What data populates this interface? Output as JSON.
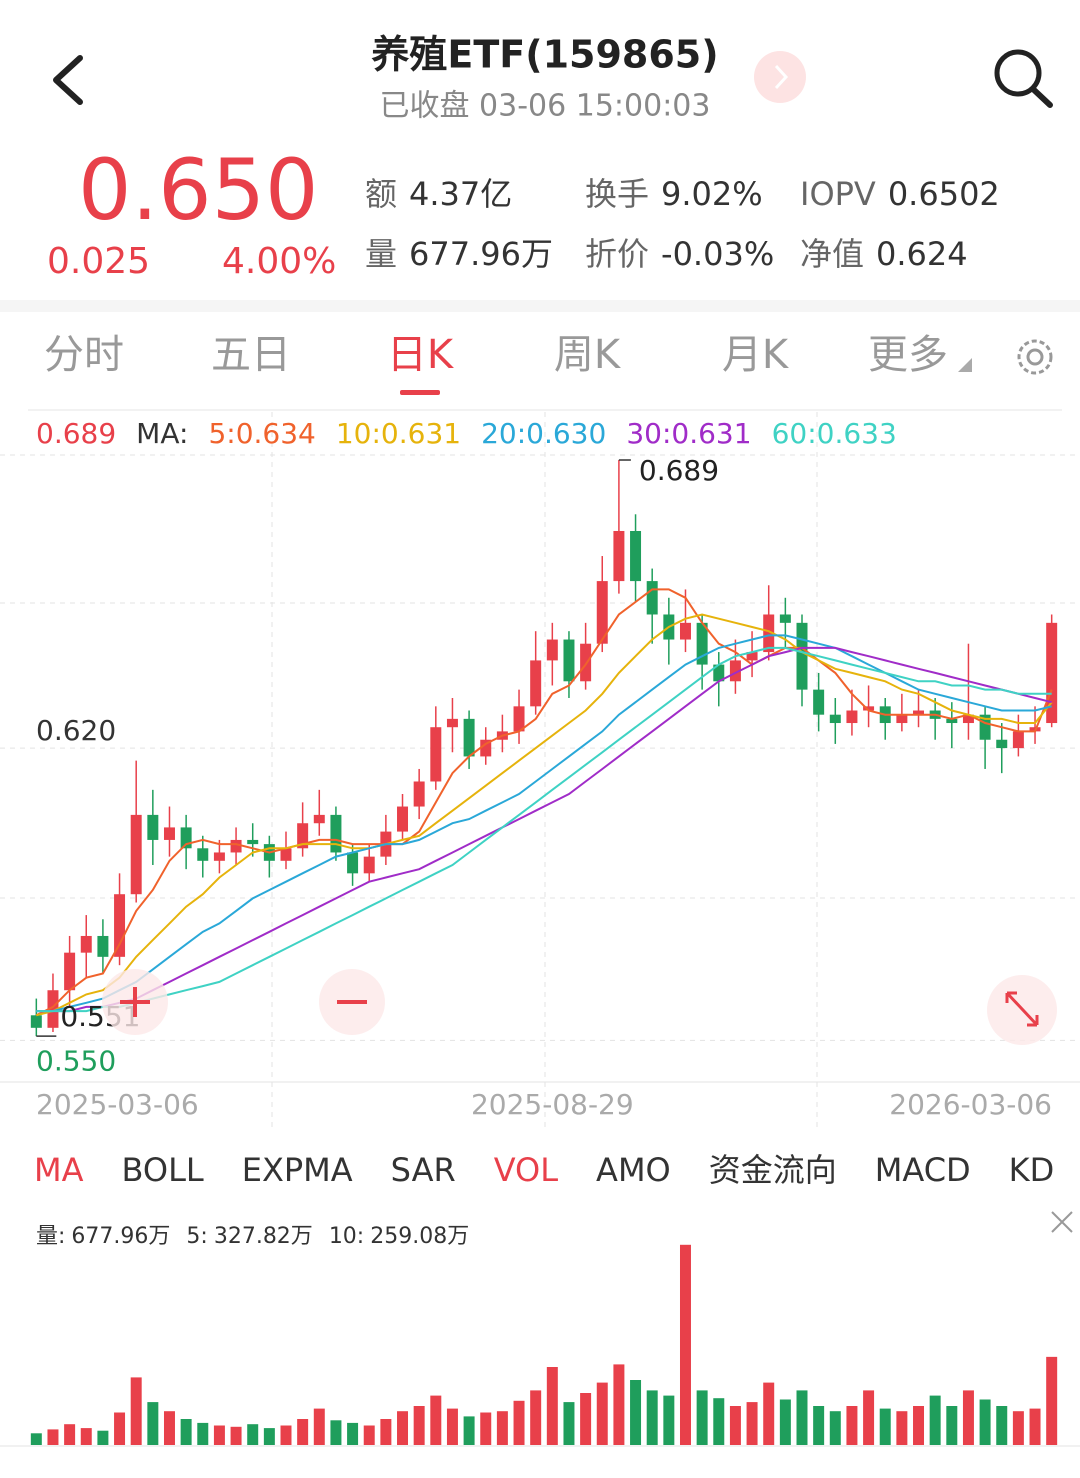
{
  "header": {
    "title": "养殖ETF(159865)",
    "subtitle": "已收盘 03-06 15:00:03"
  },
  "quote": {
    "price": "0.650",
    "change": "0.025",
    "change_pct": "4.00%",
    "stats": [
      [
        "额",
        "4.37亿"
      ],
      [
        "换手",
        "9.02%"
      ],
      [
        "IOPV",
        "0.6502"
      ],
      [
        "量",
        "677.96万"
      ],
      [
        "折价",
        "-0.03%"
      ],
      [
        "净值",
        "0.624"
      ]
    ]
  },
  "tabs": [
    "分时",
    "五日",
    "日K",
    "周K",
    "月K",
    "更多"
  ],
  "active_tab": 2,
  "indicators": [
    "MA",
    "BOLL",
    "EXPMA",
    "SAR",
    "VOL",
    "AMO",
    "资金流向",
    "MACD",
    "KD"
  ],
  "active_indicators": [
    0,
    4
  ],
  "chart_data": [
    {
      "type": "candlestick",
      "cursor_price": "0.689",
      "ma_label": "MA:",
      "up_color": "#e8404a",
      "down_color": "#1f9e5c",
      "ylim": [
        0.5405,
        0.6902
      ],
      "yticks": [
        {
          "value": 0.62,
          "label": "0.620"
        },
        {
          "value": 0.55,
          "label": "0.550"
        }
      ],
      "high_label": 0.689,
      "low_label": 0.551,
      "categories": [
        "2025-03-06",
        null,
        null,
        null,
        null,
        null,
        null,
        null,
        null,
        null,
        null,
        null,
        null,
        null,
        null,
        null,
        null,
        null,
        null,
        null,
        null,
        null,
        null,
        null,
        null,
        null,
        null,
        null,
        null,
        null,
        null,
        "2025-08-29",
        null,
        null,
        null,
        null,
        null,
        null,
        null,
        null,
        null,
        null,
        null,
        null,
        null,
        null,
        null,
        null,
        null,
        null,
        null,
        null,
        null,
        null,
        null,
        null,
        null,
        null,
        null,
        null,
        null,
        "2026-03-06"
      ],
      "candles": [
        [
          0.556,
          0.56,
          0.551,
          0.553
        ],
        [
          0.553,
          0.566,
          0.552,
          0.562
        ],
        [
          0.562,
          0.575,
          0.558,
          0.571
        ],
        [
          0.571,
          0.58,
          0.565,
          0.575
        ],
        [
          0.575,
          0.579,
          0.566,
          0.57
        ],
        [
          0.57,
          0.59,
          0.568,
          0.585
        ],
        [
          0.585,
          0.617,
          0.583,
          0.604
        ],
        [
          0.604,
          0.61,
          0.592,
          0.598
        ],
        [
          0.598,
          0.606,
          0.594,
          0.601
        ],
        [
          0.601,
          0.604,
          0.591,
          0.596
        ],
        [
          0.596,
          0.599,
          0.589,
          0.593
        ],
        [
          0.593,
          0.598,
          0.59,
          0.595
        ],
        [
          0.595,
          0.601,
          0.592,
          0.598
        ],
        [
          0.598,
          0.602,
          0.594,
          0.597
        ],
        [
          0.597,
          0.599,
          0.589,
          0.593
        ],
        [
          0.593,
          0.6,
          0.591,
          0.596
        ],
        [
          0.596,
          0.607,
          0.594,
          0.602
        ],
        [
          0.602,
          0.61,
          0.599,
          0.604
        ],
        [
          0.604,
          0.606,
          0.593,
          0.595
        ],
        [
          0.595,
          0.597,
          0.587,
          0.59
        ],
        [
          0.59,
          0.597,
          0.588,
          0.594
        ],
        [
          0.594,
          0.604,
          0.592,
          0.6
        ],
        [
          0.6,
          0.609,
          0.598,
          0.606
        ],
        [
          0.606,
          0.615,
          0.603,
          0.612
        ],
        [
          0.612,
          0.63,
          0.61,
          0.625
        ],
        [
          0.625,
          0.632,
          0.619,
          0.627
        ],
        [
          0.627,
          0.629,
          0.615,
          0.618
        ],
        [
          0.618,
          0.625,
          0.616,
          0.622
        ],
        [
          0.622,
          0.628,
          0.619,
          0.624
        ],
        [
          0.624,
          0.634,
          0.621,
          0.63
        ],
        [
          0.63,
          0.648,
          0.628,
          0.641
        ],
        [
          0.641,
          0.65,
          0.635,
          0.646
        ],
        [
          0.646,
          0.648,
          0.632,
          0.636
        ],
        [
          0.636,
          0.65,
          0.634,
          0.645
        ],
        [
          0.645,
          0.666,
          0.643,
          0.66
        ],
        [
          0.66,
          0.689,
          0.657,
          0.672
        ],
        [
          0.672,
          0.676,
          0.655,
          0.66
        ],
        [
          0.66,
          0.663,
          0.645,
          0.652
        ],
        [
          0.652,
          0.656,
          0.64,
          0.646
        ],
        [
          0.646,
          0.658,
          0.643,
          0.65
        ],
        [
          0.65,
          0.652,
          0.634,
          0.64
        ],
        [
          0.64,
          0.643,
          0.63,
          0.636
        ],
        [
          0.636,
          0.646,
          0.633,
          0.641
        ],
        [
          0.641,
          0.648,
          0.637,
          0.643
        ],
        [
          0.643,
          0.659,
          0.641,
          0.652
        ],
        [
          0.652,
          0.656,
          0.644,
          0.65
        ],
        [
          0.65,
          0.652,
          0.63,
          0.634
        ],
        [
          0.634,
          0.638,
          0.624,
          0.628
        ],
        [
          0.628,
          0.632,
          0.621,
          0.626
        ],
        [
          0.626,
          0.634,
          0.623,
          0.629
        ],
        [
          0.629,
          0.635,
          0.625,
          0.63
        ],
        [
          0.63,
          0.632,
          0.622,
          0.626
        ],
        [
          0.626,
          0.633,
          0.624,
          0.628
        ],
        [
          0.628,
          0.634,
          0.625,
          0.629
        ],
        [
          0.629,
          0.632,
          0.622,
          0.627
        ],
        [
          0.627,
          0.631,
          0.62,
          0.626
        ],
        [
          0.626,
          0.645,
          0.622,
          0.628
        ],
        [
          0.628,
          0.63,
          0.615,
          0.622
        ],
        [
          0.622,
          0.626,
          0.614,
          0.62
        ],
        [
          0.62,
          0.628,
          0.618,
          0.624
        ],
        [
          0.624,
          0.63,
          0.621,
          0.625
        ],
        [
          0.626,
          0.652,
          0.625,
          0.65
        ]
      ],
      "series": [
        {
          "name": "5:",
          "value_label": "0.634",
          "color": "#f0622c",
          "values": [
            0.556,
            0.558,
            0.562,
            0.565,
            0.566,
            0.573,
            0.581,
            0.586,
            0.593,
            0.597,
            0.598,
            0.597,
            0.597,
            0.596,
            0.595,
            0.596,
            0.597,
            0.598,
            0.598,
            0.597,
            0.597,
            0.597,
            0.597,
            0.6,
            0.607,
            0.614,
            0.618,
            0.621,
            0.623,
            0.624,
            0.627,
            0.633,
            0.635,
            0.64,
            0.646,
            0.652,
            0.655,
            0.658,
            0.658,
            0.656,
            0.65,
            0.645,
            0.643,
            0.64,
            0.642,
            0.644,
            0.644,
            0.641,
            0.638,
            0.633,
            0.629,
            0.628,
            0.628,
            0.628,
            0.628,
            0.627,
            0.628,
            0.626,
            0.625,
            0.624,
            0.624,
            0.634
          ]
        },
        {
          "name": "10:",
          "value_label": "0.631",
          "color": "#e6b30c",
          "values": [
            0.556,
            0.557,
            0.559,
            0.561,
            0.562,
            0.565,
            0.57,
            0.574,
            0.578,
            0.582,
            0.585,
            0.589,
            0.592,
            0.595,
            0.596,
            0.596,
            0.597,
            0.597,
            0.597,
            0.596,
            0.596,
            0.597,
            0.598,
            0.599,
            0.602,
            0.605,
            0.608,
            0.611,
            0.614,
            0.617,
            0.62,
            0.623,
            0.626,
            0.629,
            0.633,
            0.638,
            0.642,
            0.646,
            0.649,
            0.651,
            0.652,
            0.651,
            0.65,
            0.649,
            0.648,
            0.646,
            0.643,
            0.641,
            0.639,
            0.638,
            0.637,
            0.636,
            0.634,
            0.633,
            0.631,
            0.629,
            0.628,
            0.627,
            0.627,
            0.626,
            0.626,
            0.631
          ]
        },
        {
          "name": "20:",
          "value_label": "0.630",
          "color": "#2aa8d8",
          "values": [
            0.557,
            0.557,
            0.558,
            0.559,
            0.56,
            0.562,
            0.564,
            0.567,
            0.57,
            0.573,
            0.576,
            0.578,
            0.581,
            0.584,
            0.586,
            0.588,
            0.59,
            0.592,
            0.594,
            0.595,
            0.596,
            0.597,
            0.597,
            0.598,
            0.6,
            0.602,
            0.603,
            0.605,
            0.607,
            0.609,
            0.612,
            0.615,
            0.618,
            0.621,
            0.624,
            0.628,
            0.631,
            0.634,
            0.637,
            0.64,
            0.642,
            0.644,
            0.645,
            0.646,
            0.647,
            0.647,
            0.646,
            0.645,
            0.644,
            0.642,
            0.64,
            0.638,
            0.636,
            0.634,
            0.633,
            0.632,
            0.631,
            0.63,
            0.629,
            0.629,
            0.629,
            0.63
          ]
        },
        {
          "name": "30:",
          "value_label": "0.631",
          "color": "#a02cc8",
          "values": [
            0.557,
            0.557,
            0.557,
            0.558,
            0.558,
            0.559,
            0.56,
            0.562,
            0.564,
            0.566,
            0.568,
            0.57,
            0.572,
            0.574,
            0.576,
            0.578,
            0.58,
            0.582,
            0.584,
            0.586,
            0.588,
            0.589,
            0.59,
            0.591,
            0.593,
            0.595,
            0.597,
            0.599,
            0.601,
            0.603,
            0.605,
            0.607,
            0.609,
            0.612,
            0.615,
            0.618,
            0.621,
            0.624,
            0.627,
            0.63,
            0.633,
            0.636,
            0.638,
            0.64,
            0.642,
            0.643,
            0.644,
            0.644,
            0.644,
            0.643,
            0.642,
            0.641,
            0.64,
            0.639,
            0.638,
            0.637,
            0.636,
            0.635,
            0.634,
            0.633,
            0.632,
            0.631
          ]
        },
        {
          "name": "60:",
          "value_label": "0.633",
          "color": "#3fd2c4",
          "values": [
            0.557,
            0.557,
            0.557,
            0.557,
            0.558,
            0.558,
            0.559,
            0.56,
            0.561,
            0.562,
            0.563,
            0.564,
            0.566,
            0.568,
            0.57,
            0.572,
            0.574,
            0.576,
            0.578,
            0.58,
            0.582,
            0.584,
            0.586,
            0.588,
            0.59,
            0.592,
            0.595,
            0.598,
            0.601,
            0.604,
            0.607,
            0.61,
            0.613,
            0.616,
            0.619,
            0.622,
            0.625,
            0.628,
            0.631,
            0.634,
            0.637,
            0.64,
            0.642,
            0.643,
            0.644,
            0.644,
            0.643,
            0.642,
            0.641,
            0.64,
            0.639,
            0.638,
            0.637,
            0.636,
            0.636,
            0.635,
            0.635,
            0.634,
            0.634,
            0.633,
            0.633,
            0.633
          ]
        }
      ]
    },
    {
      "type": "bar",
      "ylim": [
        0,
        1600
      ],
      "legend": [
        [
          "量:",
          "677.96万"
        ],
        [
          "5:",
          "327.82万"
        ],
        [
          "10:",
          "259.08万"
        ]
      ],
      "values": [
        90,
        120,
        160,
        130,
        110,
        250,
        520,
        330,
        260,
        200,
        170,
        150,
        140,
        160,
        130,
        150,
        200,
        280,
        190,
        170,
        150,
        200,
        260,
        300,
        380,
        280,
        220,
        250,
        260,
        340,
        420,
        600,
        330,
        400,
        480,
        620,
        500,
        420,
        380,
        1540,
        420,
        360,
        300,
        330,
        480,
        350,
        420,
        300,
        260,
        300,
        420,
        280,
        260,
        300,
        380,
        300,
        420,
        350,
        300,
        260,
        280,
        677.96
      ]
    }
  ]
}
